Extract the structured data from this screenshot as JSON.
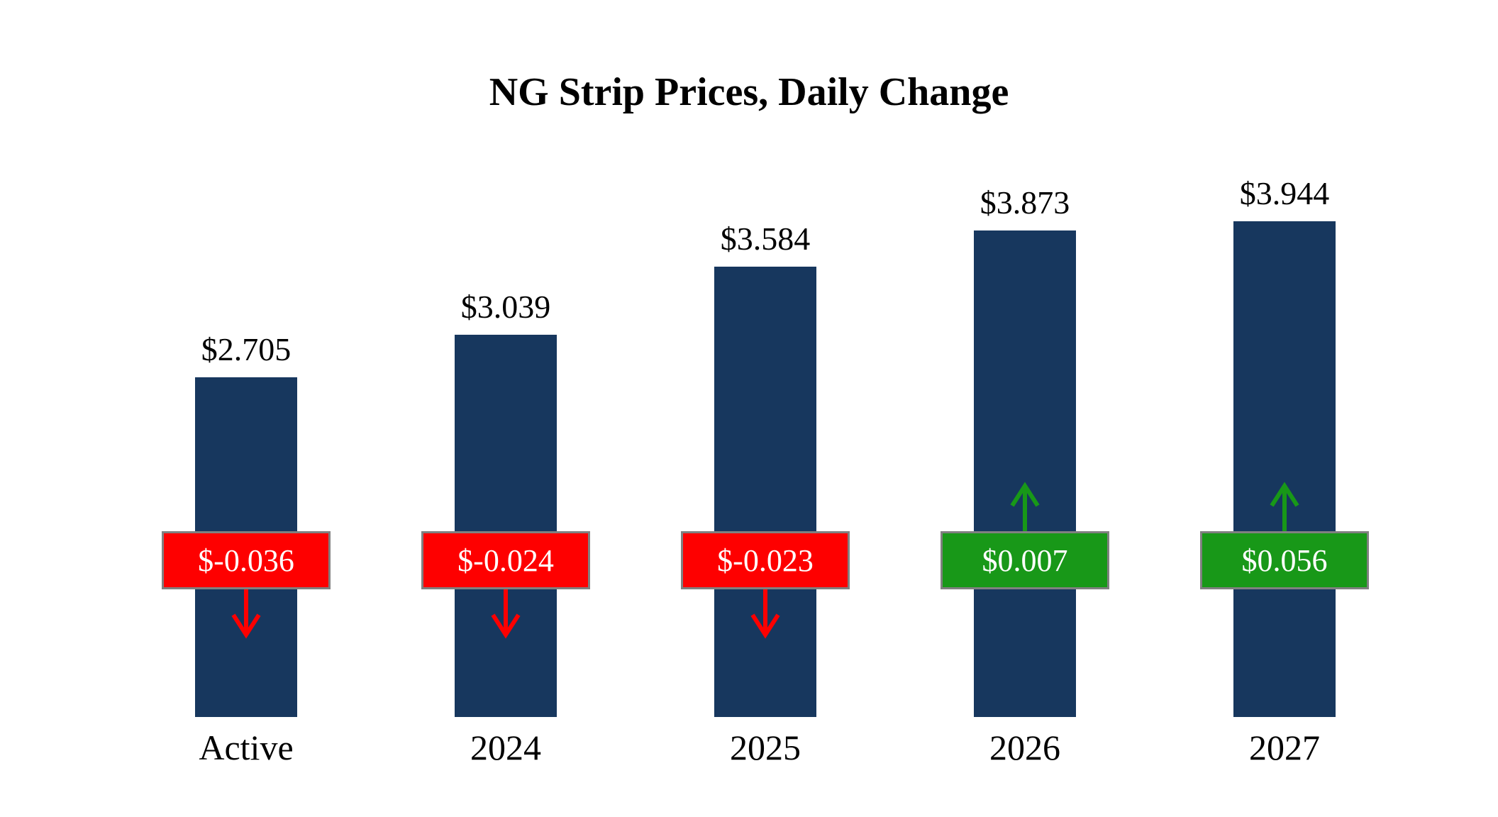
{
  "chart_data": {
    "type": "bar",
    "title": "NG Strip Prices, Daily Change",
    "categories": [
      "Active",
      "2024",
      "2025",
      "2026",
      "2027"
    ],
    "values": [
      2.705,
      3.039,
      3.584,
      3.873,
      3.944
    ],
    "value_labels": [
      "$2.705",
      "$3.039",
      "$3.584",
      "$3.873",
      "$3.944"
    ],
    "changes": [
      -0.036,
      -0.024,
      -0.023,
      0.007,
      0.056
    ],
    "change_labels": [
      "$-0.036",
      "$-0.024",
      "$-0.023",
      "$0.007",
      "$0.056"
    ],
    "xlabel": "",
    "ylabel": "",
    "ylim": [
      0,
      4.2
    ],
    "grid": false,
    "legend": false,
    "colors": {
      "bar": "#17375e",
      "negative": "#fe0000",
      "positive": "#189818",
      "badge_border": "#808080",
      "badge_text": "#ffffff",
      "text": "#000000",
      "background": "#ffffff"
    }
  }
}
